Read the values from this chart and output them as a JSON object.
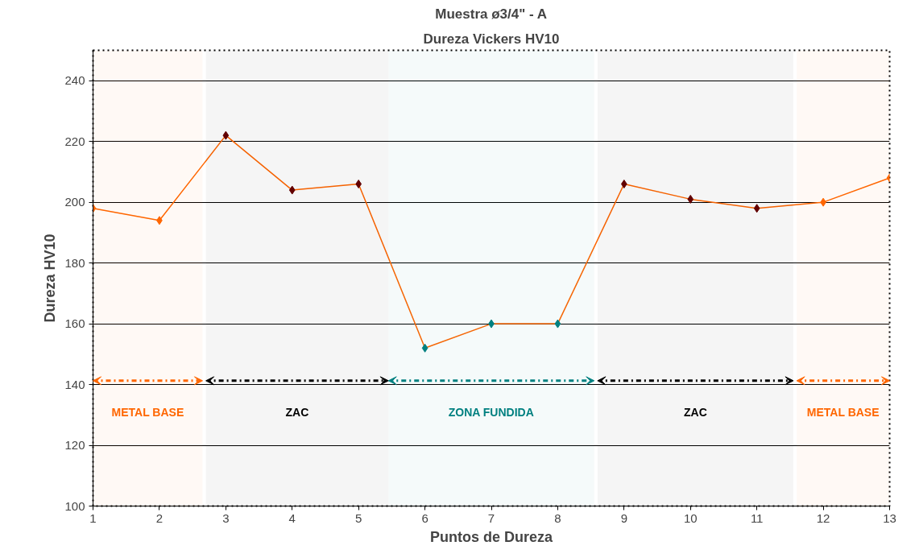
{
  "chart_data": {
    "type": "line",
    "title": "Muestra ø3/4\" - A",
    "subtitle": "Dureza Vickers HV10",
    "xlabel": "Puntos de Dureza",
    "ylabel": "Dureza HV10",
    "x": [
      1,
      2,
      3,
      4,
      5,
      6,
      7,
      8,
      9,
      10,
      11,
      12,
      13
    ],
    "series": [
      {
        "color": "#ff6600",
        "colors": [
          "#ff6600",
          "#ff6600",
          "#660000",
          "#660000",
          "#660000",
          "#008080",
          "#008080",
          "#008080",
          "#660000",
          "#660000",
          "#660000",
          "#ff6600",
          "#ff6600"
        ],
        "values": [
          198,
          194,
          222,
          204,
          206,
          152,
          160,
          160,
          206,
          201,
          198,
          200,
          208
        ]
      }
    ],
    "xlim": [
      1,
      13
    ],
    "xticks": [
      1,
      2,
      3,
      4,
      5,
      6,
      7,
      8,
      9,
      10,
      11,
      12,
      13
    ],
    "ylim": [
      100,
      250
    ],
    "yticks": [
      100,
      120,
      140,
      160,
      180,
      200,
      220,
      240
    ],
    "grid": "y",
    "marker": "diamond",
    "line_style": "solid",
    "bands": [
      {
        "axis": "x",
        "from": 1,
        "to": 2.65,
        "label": "METAL BASE",
        "color": "#ff6600"
      },
      {
        "axis": "x",
        "from": 2.7,
        "to": 5.45,
        "label": "ZAC",
        "color": "#000000"
      },
      {
        "axis": "x",
        "from": 5.45,
        "to": 8.55,
        "label": "ZONA FUNDIDA",
        "color": "#008080"
      },
      {
        "axis": "x",
        "from": 8.6,
        "to": 11.55,
        "label": "ZAC",
        "color": "#000000"
      },
      {
        "axis": "x",
        "from": 11.6,
        "to": 13,
        "label": "METAL BASE",
        "color": "#ff6600"
      }
    ]
  }
}
